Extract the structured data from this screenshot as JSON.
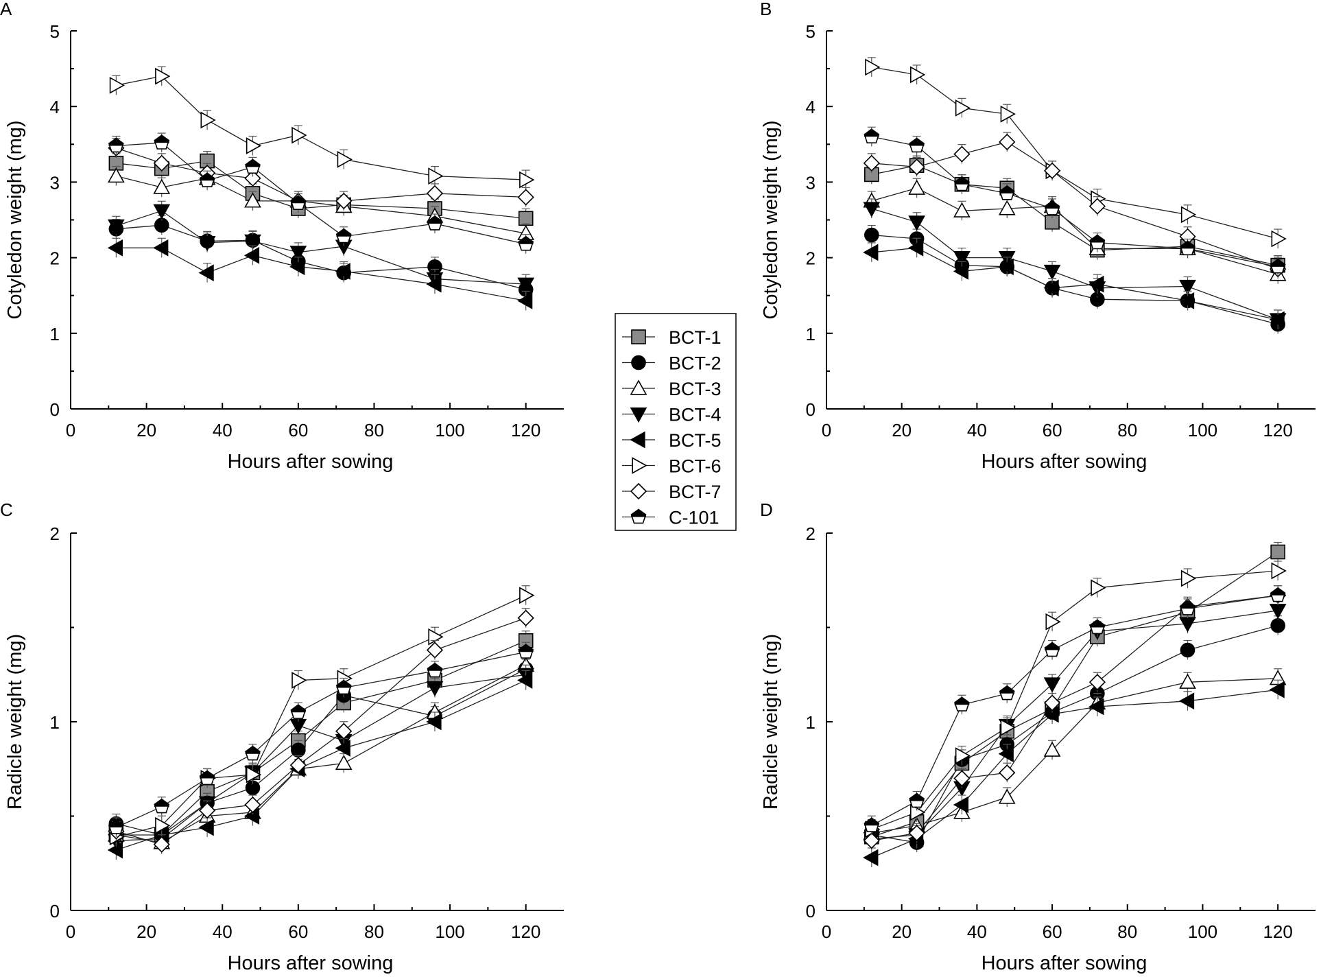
{
  "chart_data": [
    {
      "type": "line",
      "panel": "A",
      "title": "",
      "xlabel": "Hours after sowing",
      "ylabel": "Cotyledon weight (mg)",
      "xlim": [
        0,
        130
      ],
      "ylim": [
        0,
        5
      ],
      "xticks": [
        0,
        20,
        40,
        60,
        80,
        100,
        120
      ],
      "yticks": [
        0,
        1,
        2,
        3,
        4,
        5
      ],
      "x": [
        12,
        24,
        36,
        48,
        60,
        72,
        96,
        120
      ],
      "grid": false,
      "series": [
        {
          "name": "BCT-1",
          "values": [
            3.25,
            3.18,
            3.28,
            2.85,
            2.65,
            2.7,
            2.65,
            2.52
          ]
        },
        {
          "name": "BCT-2",
          "values": [
            2.38,
            2.43,
            2.22,
            2.23,
            1.95,
            1.8,
            1.88,
            1.58
          ]
        },
        {
          "name": "BCT-3",
          "values": [
            3.08,
            2.93,
            3.05,
            2.75,
            2.75,
            2.68,
            2.55,
            2.32
          ]
        },
        {
          "name": "BCT-4",
          "values": [
            2.42,
            2.62,
            2.2,
            2.22,
            2.07,
            2.15,
            1.72,
            1.65
          ]
        },
        {
          "name": "BCT-5",
          "values": [
            2.13,
            2.13,
            1.8,
            2.03,
            1.88,
            1.82,
            1.65,
            1.43
          ]
        },
        {
          "name": "BCT-6",
          "values": [
            4.28,
            4.4,
            3.82,
            3.48,
            3.62,
            3.3,
            3.08,
            3.03
          ]
        },
        {
          "name": "BCT-7",
          "values": [
            3.45,
            3.25,
            3.12,
            3.05,
            2.75,
            2.75,
            2.85,
            2.8
          ]
        },
        {
          "name": "C-101",
          "values": [
            3.48,
            3.52,
            3.02,
            3.2,
            2.72,
            2.28,
            2.45,
            2.18
          ]
        }
      ]
    },
    {
      "type": "line",
      "panel": "B",
      "title": "",
      "xlabel": "Hours after sowing",
      "ylabel": "Cotyledon weight (mg)",
      "xlim": [
        0,
        130
      ],
      "ylim": [
        0,
        5
      ],
      "xticks": [
        0,
        20,
        40,
        60,
        80,
        100,
        120
      ],
      "yticks": [
        0,
        1,
        2,
        3,
        4,
        5
      ],
      "x": [
        12,
        24,
        36,
        48,
        60,
        72,
        96,
        120
      ],
      "grid": false,
      "series": [
        {
          "name": "BCT-1",
          "values": [
            3.1,
            3.22,
            2.97,
            2.92,
            2.47,
            2.1,
            2.15,
            1.9
          ]
        },
        {
          "name": "BCT-2",
          "values": [
            2.3,
            2.25,
            1.9,
            1.88,
            1.6,
            1.45,
            1.43,
            1.12
          ]
        },
        {
          "name": "BCT-3",
          "values": [
            2.75,
            2.92,
            2.62,
            2.65,
            2.68,
            2.12,
            2.12,
            1.78
          ]
        },
        {
          "name": "BCT-4",
          "values": [
            2.65,
            2.47,
            2.0,
            2.0,
            1.82,
            1.6,
            1.62,
            1.18
          ]
        },
        {
          "name": "BCT-5",
          "values": [
            2.07,
            2.13,
            1.82,
            1.88,
            1.6,
            1.65,
            1.43,
            1.18
          ]
        },
        {
          "name": "BCT-6",
          "values": [
            4.52,
            4.42,
            3.98,
            3.9,
            3.15,
            2.78,
            2.57,
            2.25
          ]
        },
        {
          "name": "BCT-7",
          "values": [
            3.25,
            3.2,
            3.37,
            3.53,
            3.15,
            2.68,
            2.28,
            1.85
          ]
        },
        {
          "name": "C-101",
          "values": [
            3.6,
            3.48,
            2.97,
            2.85,
            2.65,
            2.2,
            2.12,
            1.88
          ]
        }
      ]
    },
    {
      "type": "line",
      "panel": "C",
      "title": "",
      "xlabel": "Hours after sowing",
      "ylabel": "Radicle weight (mg)",
      "xlim": [
        0,
        130
      ],
      "ylim": [
        0,
        2
      ],
      "xticks": [
        0,
        20,
        40,
        60,
        80,
        100,
        120
      ],
      "yticks": [
        0,
        1,
        2
      ],
      "x": [
        12,
        24,
        36,
        48,
        60,
        72,
        96,
        120
      ],
      "grid": false,
      "series": [
        {
          "name": "BCT-1",
          "values": [
            0.4,
            0.4,
            0.63,
            0.73,
            0.9,
            1.1,
            1.22,
            1.43
          ]
        },
        {
          "name": "BCT-2",
          "values": [
            0.46,
            0.4,
            0.57,
            0.65,
            0.85,
            1.14,
            1.03,
            1.28
          ]
        },
        {
          "name": "BCT-3",
          "values": [
            0.4,
            0.36,
            0.5,
            0.52,
            0.75,
            0.78,
            1.05,
            1.3
          ]
        },
        {
          "name": "BCT-4",
          "values": [
            0.37,
            0.38,
            0.57,
            0.73,
            0.98,
            0.9,
            1.18,
            1.25
          ]
        },
        {
          "name": "BCT-5",
          "values": [
            0.32,
            0.4,
            0.44,
            0.5,
            0.75,
            0.86,
            1.0,
            1.22
          ]
        },
        {
          "name": "BCT-6",
          "values": [
            0.39,
            0.45,
            0.7,
            0.72,
            1.22,
            1.23,
            1.45,
            1.67
          ]
        },
        {
          "name": "BCT-7",
          "values": [
            0.42,
            0.35,
            0.53,
            0.56,
            0.77,
            0.95,
            1.38,
            1.55
          ]
        },
        {
          "name": "C-101",
          "values": [
            0.44,
            0.55,
            0.7,
            0.83,
            1.05,
            1.18,
            1.27,
            1.37
          ]
        }
      ]
    },
    {
      "type": "line",
      "panel": "D",
      "title": "",
      "xlabel": "Hours after sowing",
      "ylabel": "Radicle weight (mg)",
      "xlim": [
        0,
        130
      ],
      "ylim": [
        0,
        2
      ],
      "xticks": [
        0,
        20,
        40,
        60,
        80,
        100,
        120
      ],
      "yticks": [
        0,
        1,
        2
      ],
      "x": [
        12,
        24,
        36,
        48,
        60,
        72,
        96,
        120
      ],
      "grid": false,
      "series": [
        {
          "name": "BCT-1",
          "values": [
            0.39,
            0.47,
            0.78,
            0.95,
            1.07,
            1.45,
            1.58,
            1.9
          ]
        },
        {
          "name": "BCT-2",
          "values": [
            0.4,
            0.36,
            0.8,
            0.88,
            1.05,
            1.15,
            1.38,
            1.51
          ]
        },
        {
          "name": "BCT-3",
          "values": [
            0.41,
            0.45,
            0.52,
            0.6,
            0.85,
            1.1,
            1.21,
            1.23
          ]
        },
        {
          "name": "BCT-4",
          "values": [
            0.38,
            0.4,
            0.65,
            0.98,
            1.2,
            1.48,
            1.52,
            1.59
          ]
        },
        {
          "name": "BCT-5",
          "values": [
            0.28,
            0.38,
            0.56,
            0.83,
            1.04,
            1.08,
            1.11,
            1.17
          ]
        },
        {
          "name": "BCT-6",
          "values": [
            0.43,
            0.52,
            0.82,
            0.97,
            1.53,
            1.71,
            1.76,
            1.8
          ]
        },
        {
          "name": "BCT-7",
          "values": [
            0.37,
            0.41,
            0.7,
            0.73,
            1.1,
            1.21,
            1.61,
            1.67
          ]
        },
        {
          "name": "C-101",
          "values": [
            0.45,
            0.58,
            1.09,
            1.15,
            1.38,
            1.5,
            1.6,
            1.67
          ]
        }
      ]
    }
  ],
  "panel_labels": [
    "A",
    "B",
    "C",
    "D"
  ],
  "legend": {
    "placement": "center",
    "entries": [
      {
        "label": "BCT-1",
        "marker": "square",
        "fill": "#8a8a8a"
      },
      {
        "label": "BCT-2",
        "marker": "circle",
        "fill": "#000000"
      },
      {
        "label": "BCT-3",
        "marker": "triangle-up",
        "fill": "#ffffff"
      },
      {
        "label": "BCT-4",
        "marker": "triangle-down",
        "fill": "#000000"
      },
      {
        "label": "BCT-5",
        "marker": "triangle-left",
        "fill": "#000000"
      },
      {
        "label": "BCT-6",
        "marker": "triangle-right",
        "fill": "#ffffff"
      },
      {
        "label": "BCT-7",
        "marker": "diamond",
        "fill": "#ffffff"
      },
      {
        "label": "C-101",
        "marker": "pentagon-half",
        "fill": "#000000"
      }
    ]
  }
}
